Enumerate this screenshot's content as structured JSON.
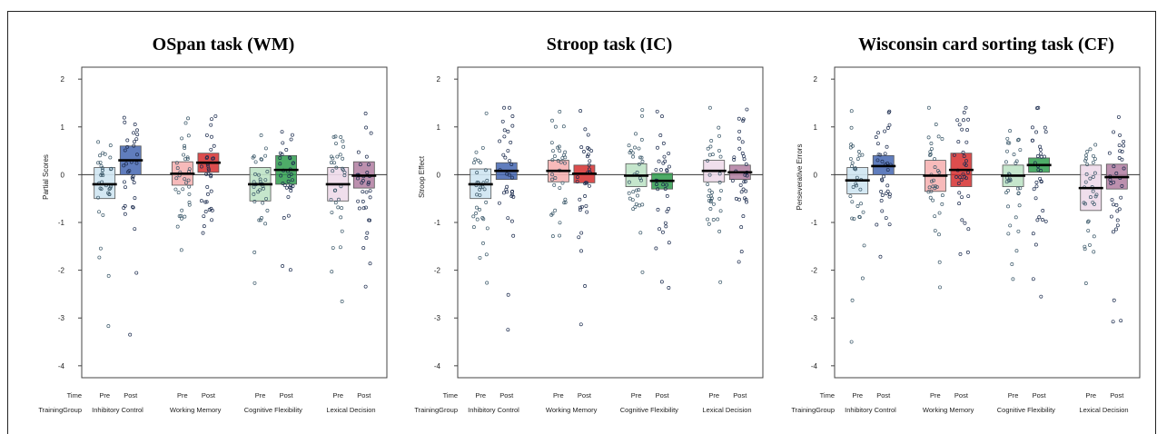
{
  "chart_data": [
    {
      "type": "pirate",
      "title": "OSpan task (WM)",
      "ylabel": "Partial Scores",
      "ylim": [
        -4.25,
        2.25
      ],
      "yticks": [
        -4,
        -3,
        -2,
        -1,
        0,
        1,
        2
      ],
      "row_labels": {
        "time": "Time",
        "group": "TrainingGroup"
      },
      "groups": [
        {
          "name": "Inhibitory Control",
          "colors": [
            "#cfe6f2",
            "#4466b2"
          ],
          "pre": {
            "label": "Pre",
            "mean": -0.2,
            "ci": [
              -0.5,
              0.15
            ]
          },
          "post": {
            "label": "Post",
            "mean": 0.3,
            "ci": [
              0.0,
              0.6
            ]
          }
        },
        {
          "name": "Working Memory",
          "colors": [
            "#f6b3b3",
            "#d62e2e"
          ],
          "pre": {
            "label": "Pre",
            "mean": 0.02,
            "ci": [
              -0.22,
              0.27
            ]
          },
          "post": {
            "label": "Post",
            "mean": 0.25,
            "ci": [
              0.05,
              0.45
            ]
          }
        },
        {
          "name": "Cognitive Flexibility",
          "colors": [
            "#bfe3c7",
            "#2f9e4e"
          ],
          "pre": {
            "label": "Pre",
            "mean": -0.2,
            "ci": [
              -0.55,
              0.15
            ]
          },
          "post": {
            "label": "Post",
            "mean": 0.1,
            "ci": [
              -0.2,
              0.4
            ]
          }
        },
        {
          "name": "Lexical Decision",
          "colors": [
            "#eedaea",
            "#b07ca0"
          ],
          "pre": {
            "label": "Pre",
            "mean": -0.2,
            "ci": [
              -0.55,
              0.15
            ]
          },
          "post": {
            "label": "Post",
            "mean": -0.02,
            "ci": [
              -0.28,
              0.27
            ]
          }
        }
      ]
    },
    {
      "type": "pirate",
      "title": "Stroop task (IC)",
      "ylabel": "Stroop Effect",
      "ylim": [
        -4.25,
        2.25
      ],
      "yticks": [
        -4,
        -3,
        -2,
        -1,
        0,
        1,
        2
      ],
      "row_labels": {
        "time": "Time",
        "group": "TrainingGroup"
      },
      "groups": [
        {
          "name": "Inhibitory Control",
          "colors": [
            "#cfe6f2",
            "#4466b2"
          ],
          "pre": {
            "label": "Pre",
            "mean": -0.2,
            "ci": [
              -0.5,
              0.12
            ]
          },
          "post": {
            "label": "Post",
            "mean": 0.08,
            "ci": [
              -0.1,
              0.25
            ]
          }
        },
        {
          "name": "Working Memory",
          "colors": [
            "#f6b3b3",
            "#d62e2e"
          ],
          "pre": {
            "label": "Pre",
            "mean": 0.08,
            "ci": [
              -0.15,
              0.3
            ]
          },
          "post": {
            "label": "Post",
            "mean": 0.02,
            "ci": [
              -0.17,
              0.2
            ]
          }
        },
        {
          "name": "Cognitive Flexibility",
          "colors": [
            "#bfe3c7",
            "#2f9e4e"
          ],
          "pre": {
            "label": "Pre",
            "mean": -0.02,
            "ci": [
              -0.25,
              0.23
            ]
          },
          "post": {
            "label": "Post",
            "mean": -0.13,
            "ci": [
              -0.3,
              0.03
            ]
          }
        },
        {
          "name": "Lexical Decision",
          "colors": [
            "#eedaea",
            "#b07ca0"
          ],
          "pre": {
            "label": "Pre",
            "mean": 0.08,
            "ci": [
              -0.15,
              0.3
            ]
          },
          "post": {
            "label": "Post",
            "mean": 0.05,
            "ci": [
              -0.1,
              0.2
            ]
          }
        }
      ]
    },
    {
      "type": "pirate",
      "title": "Wisconsin card sorting task (CF)",
      "ylabel": "Perseverative Errors",
      "ylim": [
        -4.25,
        2.25
      ],
      "yticks": [
        -4,
        -3,
        -2,
        -1,
        0,
        1,
        2
      ],
      "row_labels": {
        "time": "Time",
        "group": "TrainingGroup"
      },
      "groups": [
        {
          "name": "Inhibitory Control",
          "colors": [
            "#cfe6f2",
            "#4466b2"
          ],
          "pre": {
            "label": "Pre",
            "mean": -0.12,
            "ci": [
              -0.4,
              0.15
            ]
          },
          "post": {
            "label": "Post",
            "mean": 0.18,
            "ci": [
              0.0,
              0.4
            ]
          }
        },
        {
          "name": "Working Memory",
          "colors": [
            "#f6b3b3",
            "#d62e2e"
          ],
          "pre": {
            "label": "Pre",
            "mean": -0.02,
            "ci": [
              -0.35,
              0.3
            ]
          },
          "post": {
            "label": "Post",
            "mean": 0.1,
            "ci": [
              -0.25,
              0.45
            ]
          }
        },
        {
          "name": "Cognitive Flexibility",
          "colors": [
            "#bfe3c7",
            "#2f9e4e"
          ],
          "pre": {
            "label": "Pre",
            "mean": -0.02,
            "ci": [
              -0.25,
              0.2
            ]
          },
          "post": {
            "label": "Post",
            "mean": 0.2,
            "ci": [
              0.05,
              0.35
            ]
          }
        },
        {
          "name": "Lexical Decision",
          "colors": [
            "#eedaea",
            "#b07ca0"
          ],
          "pre": {
            "label": "Pre",
            "mean": -0.28,
            "ci": [
              -0.75,
              0.2
            ]
          },
          "post": {
            "label": "Post",
            "mean": -0.05,
            "ci": [
              -0.3,
              0.22
            ]
          }
        }
      ]
    }
  ]
}
